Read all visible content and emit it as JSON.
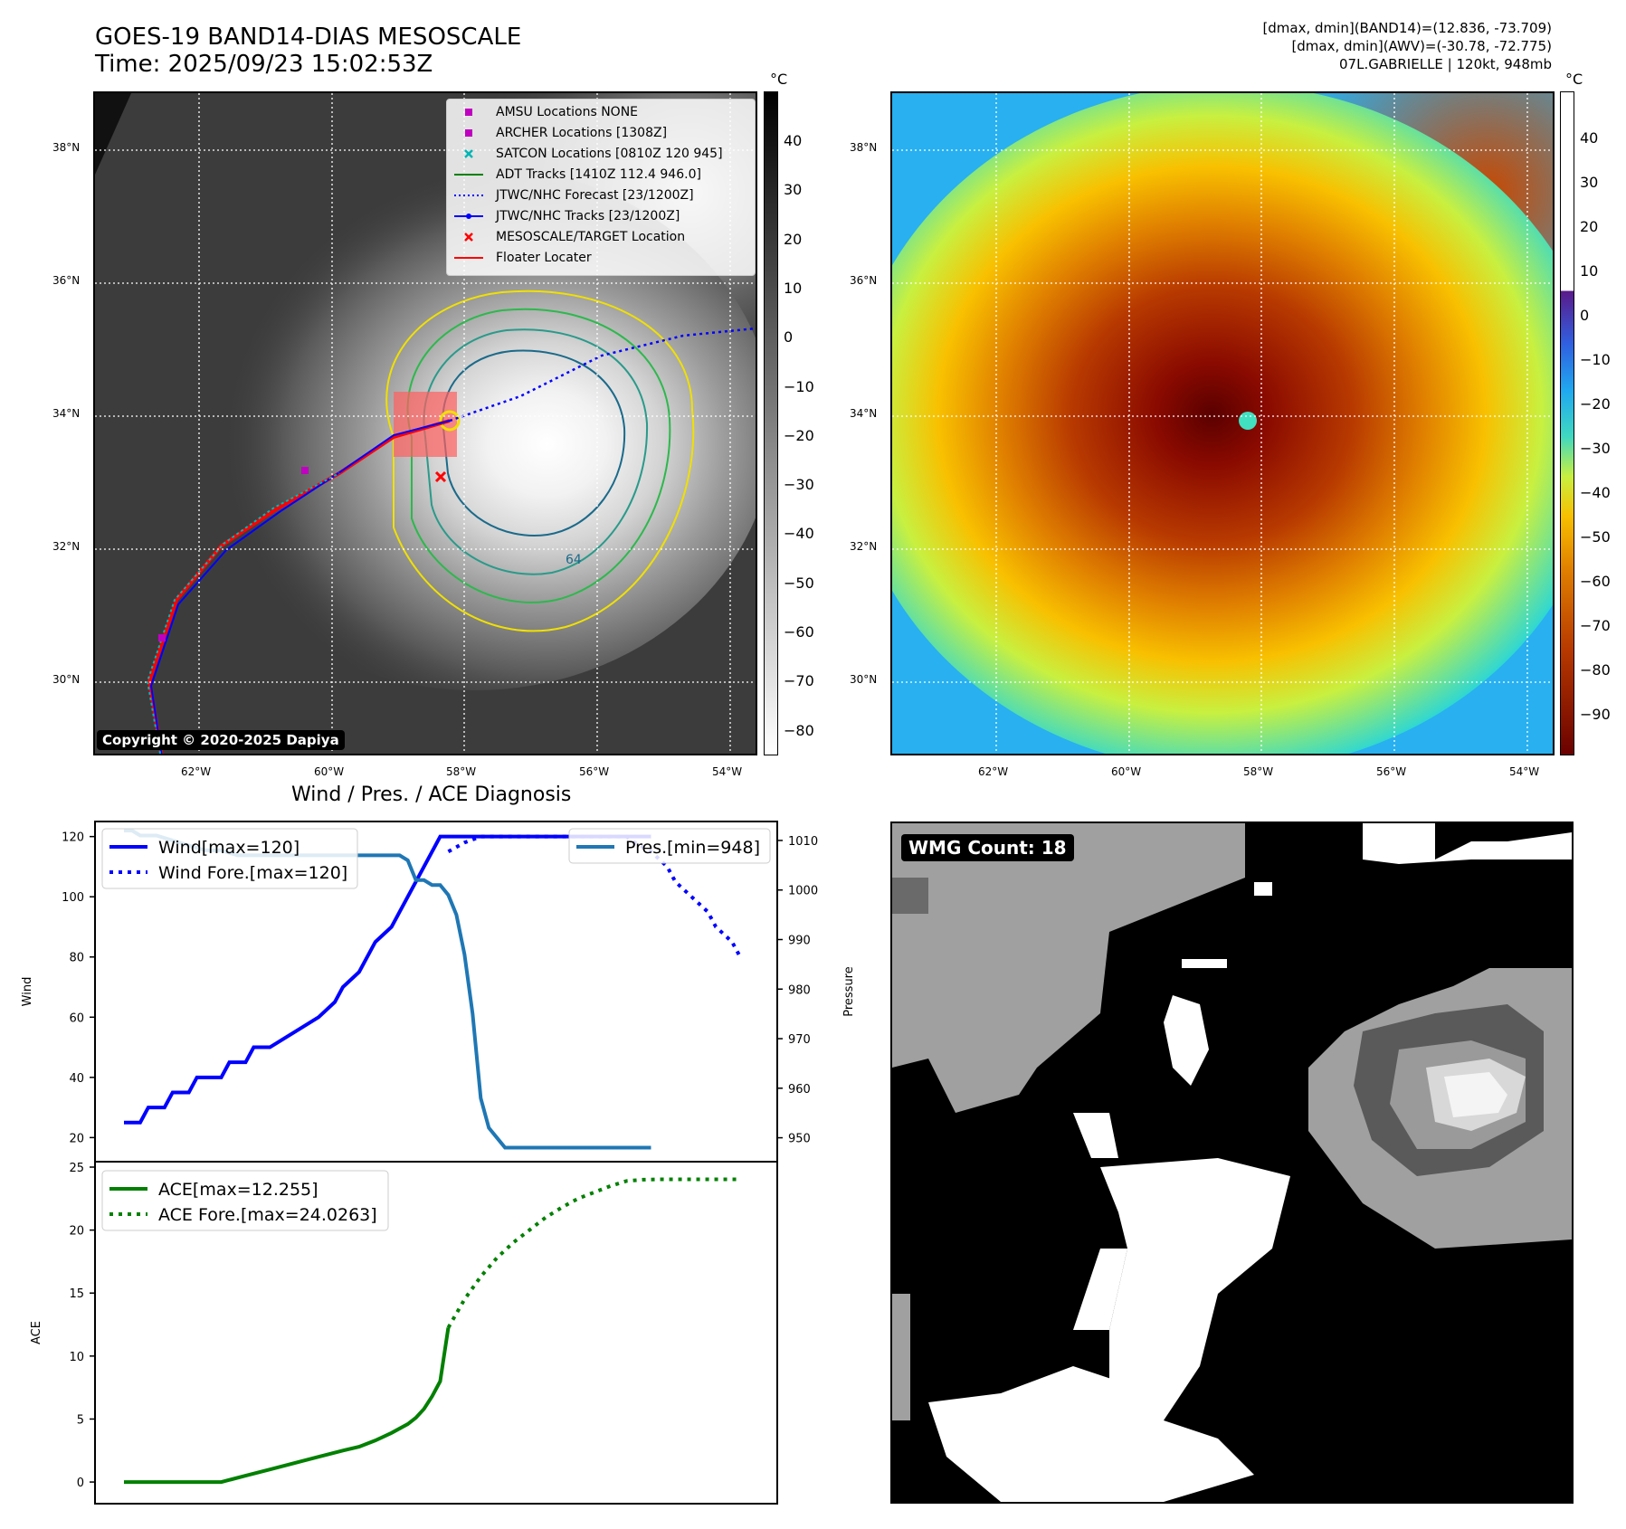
{
  "header": {
    "title_line1": "GOES-19 BAND14-DIAS MESOSCALE",
    "title_line2": "Time: 2025/09/23 15:02:53Z",
    "info_line1": "[dmax, dmin](BAND14)=(12.836, -73.709)",
    "info_line2": "[dmax, dmin](AWV)=(-30.78, -72.775)",
    "info_line3": "07L.GABRIELLE | 120kt, 948mb"
  },
  "maps": {
    "lat_labels": [
      "38°N",
      "36°N",
      "34°N",
      "32°N",
      "30°N"
    ],
    "lon_labels": [
      "62°W",
      "60°W",
      "58°W",
      "56°W",
      "54°W"
    ],
    "copyright": "Copyright © 2020-2025 Dapiya",
    "contour_label": "64",
    "legend": [
      {
        "label": "AMSU Locations NONE",
        "color": "#c000c0",
        "symbol": "square"
      },
      {
        "label": "ARCHER Locations [1308Z]",
        "color": "#c000c0",
        "symbol": "square"
      },
      {
        "label": "SATCON Locations [0810Z 120 945]",
        "color": "#00b5b5",
        "symbol": "x"
      },
      {
        "label": "ADT Tracks [1410Z 112.4 946.0]",
        "color": "#008000",
        "symbol": "line"
      },
      {
        "label": "JTWC/NHC Forecast [23/1200Z]",
        "color": "#0000ff",
        "symbol": "dotted"
      },
      {
        "label": "JTWC/NHC Tracks [23/1200Z]",
        "color": "#0000ff",
        "symbol": "line-dot"
      },
      {
        "label": "MESOSCALE/TARGET Location",
        "color": "#ff0000",
        "symbol": "x"
      },
      {
        "label": "Floater Locater",
        "color": "#ff0000",
        "symbol": "line"
      }
    ]
  },
  "colorbar_left": {
    "unit": "°C",
    "ticks": [
      "40",
      "30",
      "20",
      "10",
      "0",
      "−10",
      "−20",
      "−30",
      "−40",
      "−50",
      "−60",
      "−70",
      "−80"
    ]
  },
  "colorbar_right": {
    "unit": "°C",
    "ticks": [
      "40",
      "30",
      "20",
      "10",
      "0",
      "−10",
      "−20",
      "−30",
      "−40",
      "−50",
      "−60",
      "−70",
      "−80",
      "−90"
    ]
  },
  "chart_data": [
    {
      "type": "line",
      "title": "Wind / Pres. / ACE Diagnosis",
      "ylabel": "Wind",
      "ylim": [
        15,
        122
      ],
      "yticks": [
        20,
        40,
        60,
        80,
        100,
        120
      ],
      "x_index_range": [
        0,
        77
      ],
      "series": [
        {
          "name": "Wind[max=120]",
          "style": "solid",
          "color": "#0000ff",
          "x": [
            0,
            2,
            3,
            5,
            6,
            8,
            9,
            12,
            13,
            15,
            16,
            18,
            21,
            24,
            26,
            27,
            29,
            30,
            31,
            33,
            34,
            35,
            36,
            37,
            38,
            39,
            40,
            42,
            43,
            45,
            46,
            48,
            49,
            50,
            51,
            52,
            53,
            54,
            55,
            56,
            57,
            58,
            59,
            60,
            61,
            62,
            63,
            64,
            65
          ],
          "values": [
            25,
            25,
            30,
            30,
            35,
            35,
            40,
            40,
            45,
            45,
            50,
            50,
            55,
            60,
            65,
            70,
            75,
            80,
            85,
            90,
            95,
            100,
            105,
            110,
            115,
            120,
            120,
            120,
            120,
            120,
            120,
            120,
            120,
            120,
            120,
            120,
            120,
            120,
            120,
            120,
            120,
            120,
            120,
            120,
            120,
            120,
            120,
            120,
            120
          ]
        },
        {
          "name": "Wind Fore.[max=120]",
          "style": "dotted",
          "color": "#0000ff",
          "x": [
            40,
            42,
            44,
            46,
            48,
            50,
            52,
            54,
            56,
            58,
            60,
            62,
            63,
            65,
            67,
            68,
            70,
            72,
            73,
            75,
            76
          ],
          "values": [
            115,
            118,
            120,
            120,
            120,
            120,
            120,
            120,
            120,
            120,
            120,
            120,
            118,
            115,
            110,
            105,
            100,
            95,
            90,
            85,
            80
          ]
        }
      ]
    },
    {
      "type": "line",
      "ylabel": "Pressure",
      "ylim": [
        947,
        1012
      ],
      "yticks": [
        950,
        960,
        970,
        980,
        990,
        1000,
        1010
      ],
      "series": [
        {
          "name": "Pres.[min=948]",
          "style": "solid",
          "color": "#1f77b4",
          "x": [
            0,
            1,
            2,
            4,
            6,
            8,
            10,
            12,
            14,
            16,
            18,
            20,
            22,
            24,
            26,
            28,
            29,
            30,
            31,
            32,
            33,
            34,
            35,
            36,
            37,
            38,
            39,
            40,
            41,
            42,
            43,
            44,
            45,
            46,
            47,
            48,
            49,
            50,
            51,
            52,
            53,
            54,
            55,
            56,
            57,
            58,
            59,
            60,
            61,
            62,
            63,
            64,
            65
          ],
          "values": [
            1012,
            1012,
            1011,
            1011,
            1010,
            1009,
            1008,
            1008,
            1007,
            1007,
            1007,
            1007,
            1007,
            1007,
            1007,
            1007,
            1007,
            1007,
            1007,
            1007,
            1007,
            1007,
            1006,
            1002,
            1002,
            1001,
            1001,
            999,
            995,
            987,
            975,
            958,
            952,
            950,
            948,
            948,
            948,
            948,
            948,
            948,
            948,
            948,
            948,
            948,
            948,
            948,
            948,
            948,
            948,
            948,
            948,
            948,
            948
          ]
        }
      ]
    },
    {
      "type": "line",
      "ylabel": "ACE",
      "ylim": [
        -1,
        25
      ],
      "yticks": [
        0,
        5,
        10,
        15,
        20,
        25
      ],
      "series": [
        {
          "name": "ACE[max=12.255]",
          "style": "solid",
          "color": "#008000",
          "x": [
            0,
            12,
            15,
            18,
            21,
            24,
            27,
            29,
            31,
            33,
            35,
            36,
            37,
            38,
            39,
            40
          ],
          "values": [
            0,
            0,
            0.5,
            1.0,
            1.5,
            2.0,
            2.5,
            2.8,
            3.3,
            3.9,
            4.6,
            5.1,
            5.8,
            6.8,
            8.0,
            12.255
          ]
        },
        {
          "name": "ACE Fore.[max=24.0263]",
          "style": "dotted",
          "color": "#008000",
          "x": [
            40,
            42,
            44,
            46,
            48,
            50,
            52,
            54,
            56,
            58,
            60,
            62,
            64,
            66,
            68,
            70,
            72,
            74,
            76
          ],
          "values": [
            12.255,
            14.5,
            16.3,
            17.8,
            19.0,
            20.0,
            21.0,
            21.8,
            22.5,
            23.0,
            23.5,
            23.9,
            24.0,
            24.0263,
            24.0263,
            24.0263,
            24.0263,
            24.0263,
            24.0263
          ]
        }
      ]
    }
  ],
  "wmg": {
    "badge": "WMG Count: 18"
  }
}
